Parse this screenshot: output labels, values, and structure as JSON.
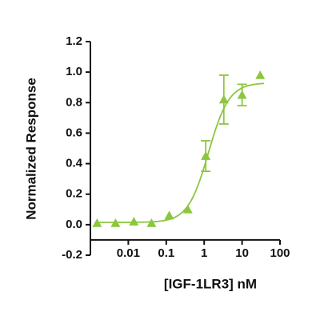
{
  "chart_data": {
    "type": "dose-response",
    "x_label": "[IGF-1LR3] nM",
    "y_label": "Normalized Response",
    "x": [
      0.0015,
      0.0046,
      0.014,
      0.041,
      0.12,
      0.37,
      1.1,
      3.3,
      10,
      30
    ],
    "values": [
      0.01,
      0.01,
      0.02,
      0.01,
      0.06,
      0.1,
      0.45,
      0.82,
      0.85,
      0.98
    ],
    "errors": [
      null,
      null,
      null,
      null,
      null,
      null,
      0.1,
      0.16,
      0.07,
      null
    ],
    "fit": {
      "bottom": 0.015,
      "top": 0.93,
      "ec50": 1.3,
      "hill": 1.6
    },
    "color": "#8dc63f",
    "x_log": true,
    "xlim": [
      0.001,
      100
    ],
    "xticks": [
      0.01,
      0.1,
      1,
      10,
      100
    ],
    "ylim": [
      -0.2,
      1.2
    ],
    "yticks": [
      -0.2,
      {
        "value": 0,
        "label": "0.0"
      },
      0.2,
      0.4,
      0.6,
      0.8,
      {
        "value": 1,
        "label": "1.0"
      },
      1.2
    ],
    "x_axis_crosses": -0.1
  }
}
